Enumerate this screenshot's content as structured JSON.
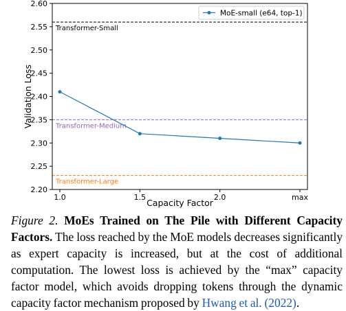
{
  "chart_data": {
    "type": "line",
    "xlabel": "Capacity Factor",
    "ylabel": "Validation Loss",
    "categories": [
      "1.0",
      "1.5",
      "2.0",
      "max"
    ],
    "ylim": [
      2.2,
      2.6
    ],
    "yticks": [
      "2.20",
      "2.25",
      "2.30",
      "2.35",
      "2.40",
      "2.45",
      "2.50",
      "2.55",
      "2.60"
    ],
    "series": [
      {
        "name": "MoE-small (e64, top-1)",
        "values": [
          2.41,
          2.32,
          2.31,
          2.3
        ],
        "color": "#1f77b4"
      }
    ],
    "reference_lines": [
      {
        "label": "Transformer-Small",
        "value": 2.56,
        "color": "#000000"
      },
      {
        "label": "Transformer-Medium",
        "value": 2.35,
        "color": "#9467bd"
      },
      {
        "label": "Transformer-Large",
        "value": 2.23,
        "color": "#ff7f0e"
      }
    ],
    "legend_position": "top-right",
    "grid": false
  },
  "caption": {
    "label": "Figure 2.",
    "title": "MoEs Trained on The Pile with Different Capacity Factors.",
    "body": "The loss reached by the MoE models decreases significantly as expert capacity is increased, but at the cost of additional computation. The lowest loss is achieved by the “max” capacity factor model, which avoids dropping tokens through the dynamic capacity factor mechanism proposed by",
    "citation": "Hwang et al. (2022)",
    "end": "."
  }
}
